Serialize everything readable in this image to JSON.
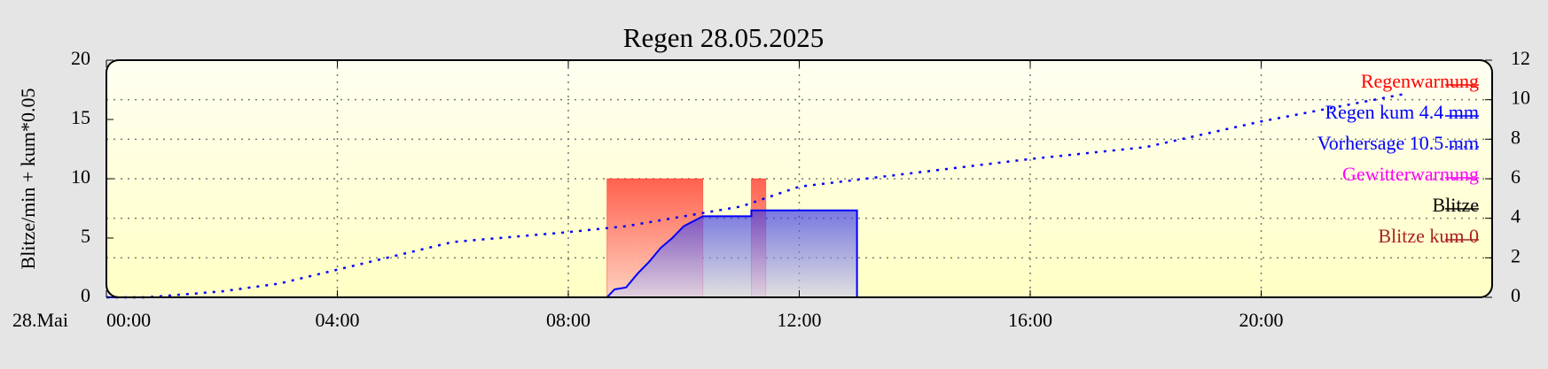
{
  "chart_data": {
    "type": "line",
    "title": "Regen 28.05.2025",
    "ylabel": "Blitze/min + kum*0.05",
    "date_label": "28.Mai",
    "xlim": [
      0,
      24
    ],
    "xticks": [
      {
        "value": 0,
        "label": "00:00"
      },
      {
        "value": 4,
        "label": "04:00"
      },
      {
        "value": 8,
        "label": "08:00"
      },
      {
        "value": 12,
        "label": "12:00"
      },
      {
        "value": 16,
        "label": "16:00"
      },
      {
        "value": 20,
        "label": "20:00"
      }
    ],
    "ylim": [
      0,
      20
    ],
    "yticks": [
      0,
      5,
      10,
      15,
      20
    ],
    "y2lim": [
      0,
      12
    ],
    "y2ticks": [
      0,
      2,
      4,
      6,
      8,
      10,
      12
    ],
    "grid": true,
    "legend": "upper right",
    "series": [
      {
        "name": "Regenwarnung",
        "color": "#ff0000",
        "kind": "band",
        "axis": "y2",
        "x": [
          8.67,
          10.33,
          11.17,
          11.42
        ],
        "values": [
          6,
          0,
          6,
          0
        ]
      },
      {
        "name": "Regen kum 4.4 mm",
        "color": "#0000ff",
        "kind": "area",
        "axis": "y2",
        "x": [
          0,
          8.67,
          8.8,
          9.0,
          9.2,
          9.4,
          9.6,
          9.8,
          10.0,
          10.2,
          10.33,
          11.17,
          11.17,
          13.0,
          13.0
        ],
        "values": [
          0,
          0,
          0.4,
          0.5,
          1.2,
          1.8,
          2.5,
          3.0,
          3.6,
          3.9,
          4.1,
          4.1,
          4.4,
          4.4,
          0
        ]
      },
      {
        "name": "Vorhersage 10.5 mm",
        "color": "#0000ff",
        "kind": "dotted",
        "axis": "y2",
        "x": [
          0,
          0.7,
          2,
          3,
          4,
          5,
          6,
          8,
          9,
          10,
          11,
          12,
          14,
          16,
          18,
          20,
          22.5
        ],
        "values": [
          0,
          0,
          0.3,
          0.7,
          1.4,
          2.1,
          2.8,
          3.3,
          3.6,
          4.1,
          4.6,
          5.6,
          6.3,
          7.0,
          7.6,
          8.9,
          10.3
        ]
      },
      {
        "name": "Gewitterwarnung",
        "color": "#ff00ff",
        "kind": "band",
        "axis": "y",
        "x": [],
        "values": []
      },
      {
        "name": "Blitze",
        "color": "#000000",
        "kind": "line",
        "axis": "y",
        "x": [],
        "values": []
      },
      {
        "name": "Blitze kum 0",
        "color": "#aa2222",
        "kind": "line",
        "axis": "y",
        "x": [],
        "values": []
      }
    ]
  }
}
